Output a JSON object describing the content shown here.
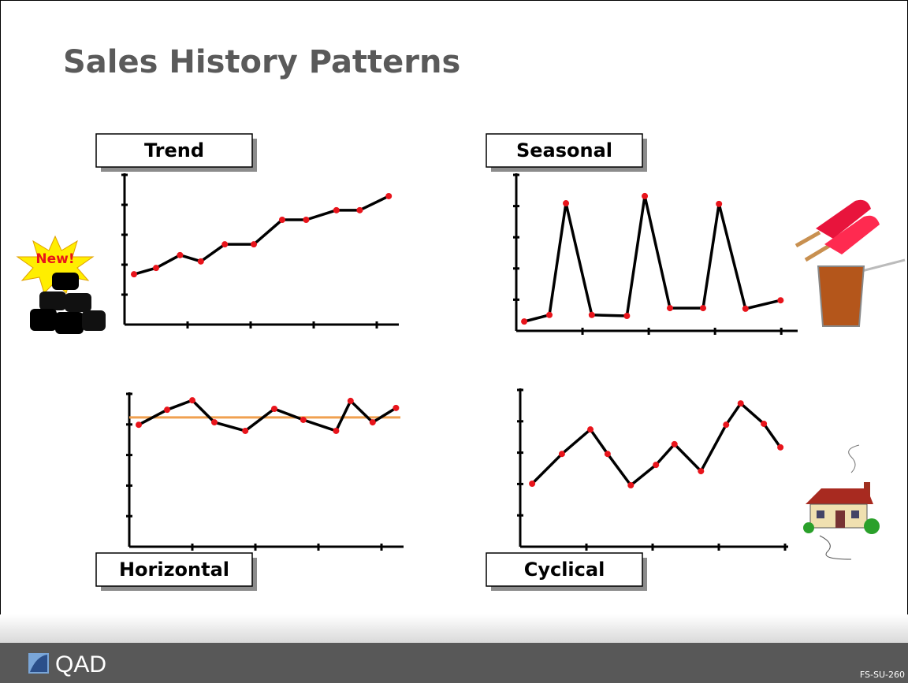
{
  "title": "Sales History Patterns",
  "badge": "New!",
  "footer": {
    "logo": "QAD",
    "code": "FS-SU-260"
  },
  "chart_data": [
    {
      "type": "line",
      "title": "Trend",
      "color": "#000000",
      "marker_color": "#e8141b",
      "x": [
        0.15,
        0.5,
        0.88,
        1.21,
        1.59,
        2.05,
        2.5,
        2.88,
        3.36,
        3.73,
        4.19
      ],
      "values": [
        1.68,
        1.89,
        2.32,
        2.11,
        2.68,
        2.68,
        3.5,
        3.5,
        3.82,
        3.82,
        4.29
      ],
      "xlim": [
        0,
        4.3
      ],
      "ylim": [
        0,
        5
      ],
      "xticks": [
        1,
        2,
        3,
        4
      ],
      "yticks": [
        1,
        2,
        3,
        4,
        5
      ]
    },
    {
      "type": "line",
      "title": "Seasonal",
      "color": "#000000",
      "marker_color": "#e8141b",
      "x": [
        0.12,
        0.5,
        0.75,
        1.14,
        1.67,
        1.94,
        2.32,
        2.82,
        3.06,
        3.46,
        3.99
      ],
      "values": [
        0.3,
        0.51,
        4.09,
        0.51,
        0.48,
        4.32,
        0.73,
        0.73,
        4.07,
        0.71,
        0.98
      ],
      "xlim": [
        0,
        4.2
      ],
      "ylim": [
        0,
        5
      ],
      "xticks": [
        1,
        2,
        3,
        4
      ],
      "yticks": [
        1,
        2,
        3,
        4,
        5
      ]
    },
    {
      "type": "line",
      "title": "Horizontal",
      "color": "#000000",
      "marker_color": "#e8141b",
      "x": [
        0.15,
        0.6,
        1.0,
        1.35,
        1.84,
        2.3,
        2.76,
        3.28,
        3.51,
        3.86,
        4.23
      ],
      "values": [
        3.99,
        4.48,
        4.79,
        4.07,
        3.79,
        4.51,
        4.15,
        3.79,
        4.77,
        4.07,
        4.54
      ],
      "reference_line": 4.23,
      "reference_color": "#f0a050",
      "xlim": [
        0,
        4.3
      ],
      "ylim": [
        0,
        5
      ],
      "xticks": [
        1,
        2,
        3,
        4
      ],
      "yticks": [
        1,
        2,
        3,
        4,
        5
      ]
    },
    {
      "type": "line",
      "title": "Cyclical",
      "color": "#000000",
      "marker_color": "#e8141b",
      "x": [
        0.18,
        0.63,
        1.06,
        1.32,
        1.67,
        2.05,
        2.33,
        2.73,
        3.11,
        3.33,
        3.68,
        3.93
      ],
      "values": [
        2.01,
        2.96,
        3.74,
        2.96,
        1.96,
        2.61,
        3.27,
        2.41,
        3.89,
        4.57,
        3.92,
        3.17
      ],
      "xlim": [
        0,
        4.0
      ],
      "ylim": [
        0,
        5
      ],
      "xticks": [
        1,
        2,
        3,
        4
      ],
      "yticks": [
        1,
        2,
        3,
        4,
        5
      ]
    }
  ]
}
